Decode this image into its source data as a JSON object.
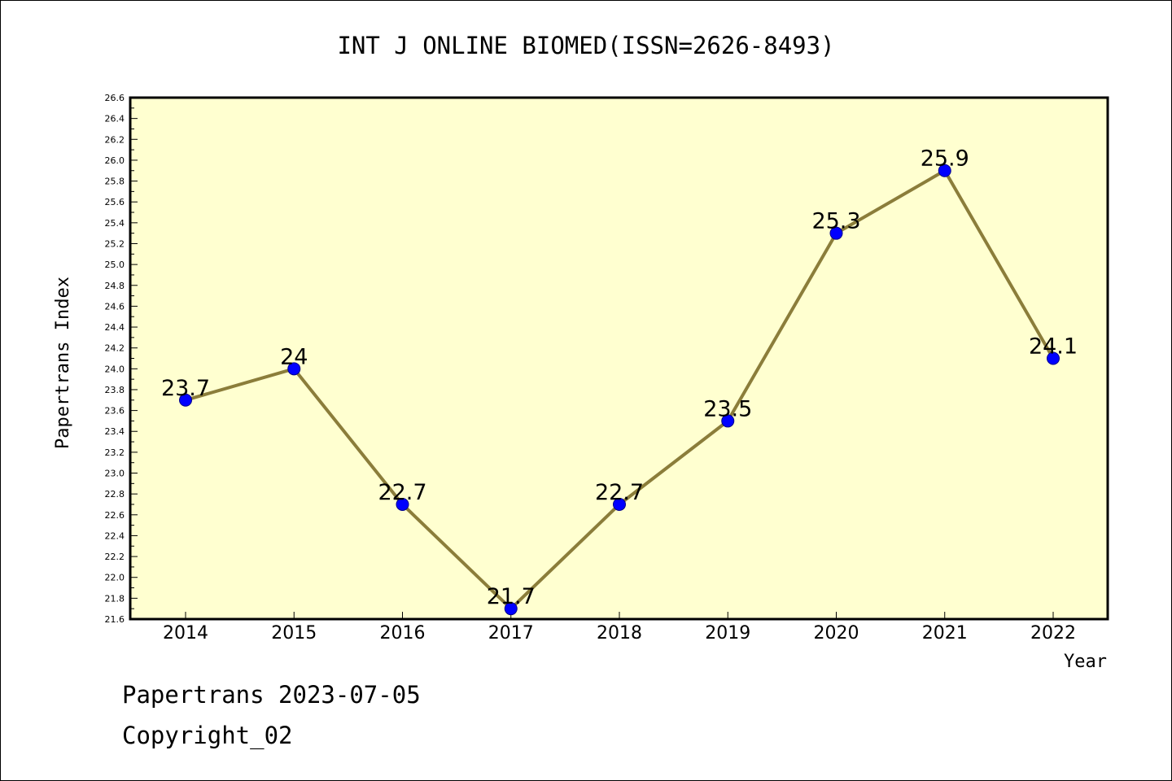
{
  "chart_data": {
    "type": "line",
    "title": "INT J ONLINE BIOMED(ISSN=2626-8493)",
    "xlabel": "Year",
    "ylabel": "Papertrans Index",
    "categories": [
      "2014",
      "2015",
      "2016",
      "2017",
      "2018",
      "2019",
      "2020",
      "2021",
      "2022"
    ],
    "values": [
      23.7,
      24,
      22.7,
      21.7,
      22.7,
      23.5,
      25.3,
      25.9,
      24.1
    ],
    "point_labels": [
      "23.7",
      "24",
      "22.7",
      "21.7",
      "22.7",
      "23.5",
      "25.3",
      "25.9",
      "24.1"
    ],
    "ylim": [
      21.6,
      26.6
    ],
    "y_ticks": [
      "21.6",
      "21.8",
      "22.0",
      "22.2",
      "22.4",
      "22.6",
      "22.8",
      "23.0",
      "23.2",
      "23.4",
      "23.6",
      "23.8",
      "24.0",
      "24.2",
      "24.4",
      "24.6",
      "24.8",
      "25.0",
      "25.2",
      "25.4",
      "25.6",
      "25.8",
      "26.0",
      "26.2",
      "26.4",
      "26.6"
    ],
    "grid": false,
    "colors": {
      "plot_background": "#ffffd0",
      "line": "#8b7d3a",
      "marker": "#0000ff"
    }
  },
  "footer": {
    "line1": "Papertrans 2023-07-05",
    "line2": "Copyright_02"
  }
}
